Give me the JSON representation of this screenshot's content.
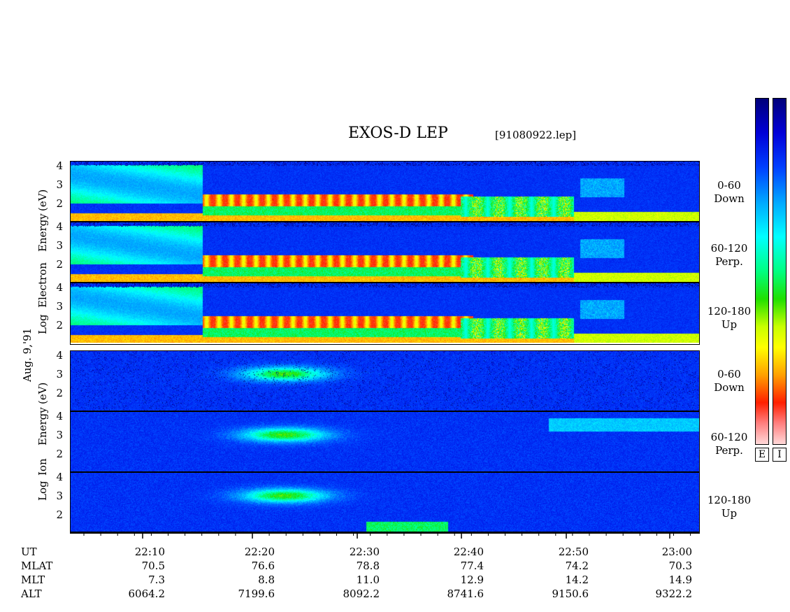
{
  "title": "EXOS-D LEP",
  "file": "[91080922.lep]",
  "date_label": "Aug. 9,'91",
  "colors": {
    "background_electron": "#0000c8",
    "background_ion": "#0a28d8",
    "scale": [
      "#00007a",
      "#0000d8",
      "#00a8ff",
      "#00ffff",
      "#00ff80",
      "#20e000",
      "#ffff00",
      "#ffa000",
      "#ff2000",
      "#ffd8d8"
    ]
  },
  "colorbars": {
    "electron_label": "E",
    "ion_label": "I"
  },
  "y_labels": {
    "electron": [
      "Log",
      "Electron",
      "Energy",
      "(eV)"
    ],
    "ion": [
      "Log",
      "Ion",
      "Energy",
      "(eV)"
    ]
  },
  "x_axis": {
    "row_labels": [
      "UT",
      "MLAT",
      "MLT",
      "ALT"
    ],
    "ticks": [
      {
        "ut": "22:10",
        "mlat": "70.5",
        "mlt": "7.3",
        "alt": "6064.2"
      },
      {
        "ut": "22:20",
        "mlat": "76.6",
        "mlt": "8.8",
        "alt": "7199.6"
      },
      {
        "ut": "22:30",
        "mlat": "78.8",
        "mlt": "11.0",
        "alt": "8092.2"
      },
      {
        "ut": "22:40",
        "mlat": "77.4",
        "mlt": "12.9",
        "alt": "8741.6"
      },
      {
        "ut": "22:50",
        "mlat": "74.2",
        "mlt": "14.2",
        "alt": "9150.6"
      },
      {
        "ut": "23:00",
        "mlat": "70.3",
        "mlt": "14.9",
        "alt": "9322.2"
      }
    ]
  },
  "chart_data": {
    "type": "heatmap",
    "title": "EXOS-D LEP",
    "xlabel": "UT",
    "ylabel": "Log Energy (eV)",
    "x_ticks": [
      "22:10",
      "22:20",
      "22:30",
      "22:40",
      "22:50",
      "23:00"
    ],
    "panels": [
      {
        "species": "Electron",
        "pitch_angle": "0-60",
        "direction": "Down",
        "y_ticks": [
          "4",
          "3",
          "2"
        ]
      },
      {
        "species": "Electron",
        "pitch_angle": "60-120",
        "direction": "Perp.",
        "y_ticks": [
          "4",
          "3",
          "2"
        ]
      },
      {
        "species": "Electron",
        "pitch_angle": "120-180",
        "direction": "Up",
        "y_ticks": [
          "4",
          "3",
          "2"
        ]
      },
      {
        "species": "Ion",
        "pitch_angle": "0-60",
        "direction": "Down",
        "y_ticks": [
          "4",
          "3",
          "2"
        ]
      },
      {
        "species": "Ion",
        "pitch_angle": "60-120",
        "direction": "Perp.",
        "y_ticks": [
          "4",
          "3",
          "2"
        ]
      },
      {
        "species": "Ion",
        "pitch_angle": "120-180",
        "direction": "Up",
        "y_ticks": [
          "4",
          "3",
          "2"
        ]
      }
    ]
  }
}
